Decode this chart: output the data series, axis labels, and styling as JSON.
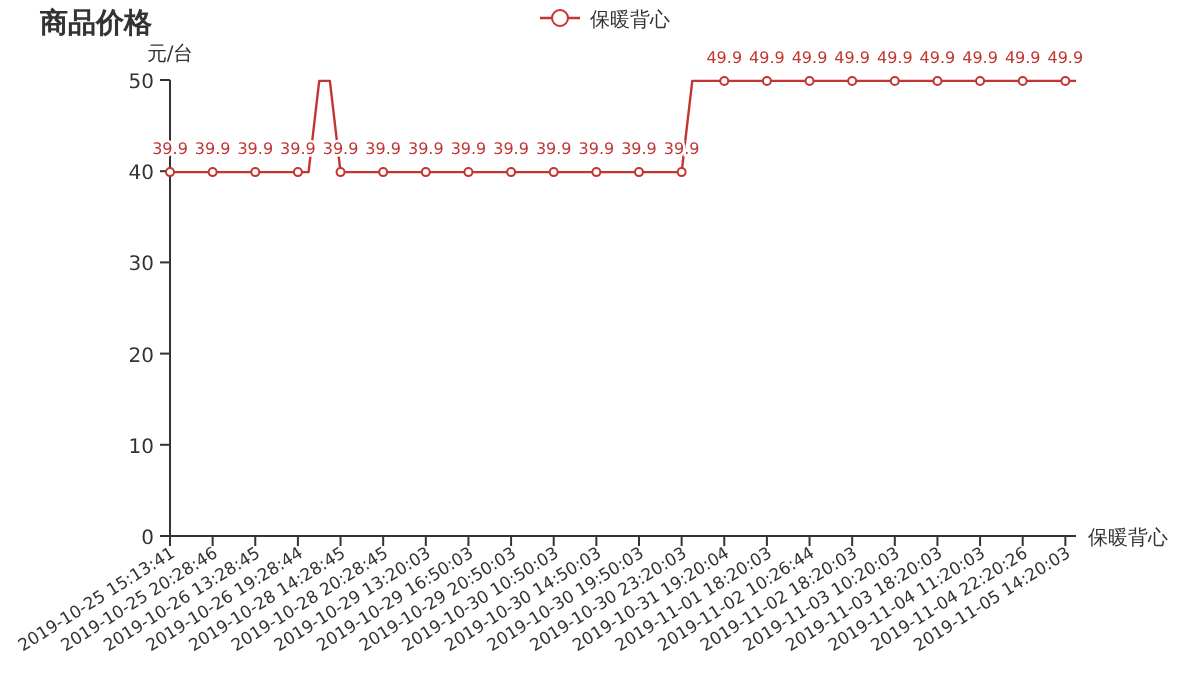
{
  "chart_data": {
    "type": "line",
    "title": "商品价格",
    "ylabel": "元/台",
    "xlabel": "保暖背心",
    "categories": [
      "2019-10-25 15:13:41",
      null,
      null,
      null,
      "2019-10-25 20:28:46",
      null,
      null,
      null,
      "2019-10-26 13:28:45",
      null,
      null,
      null,
      "2019-10-26 19:28:44",
      null,
      null,
      null,
      "2019-10-28 14:28:45",
      null,
      null,
      null,
      "2019-10-28 20:28:45",
      null,
      null,
      null,
      "2019-10-29 13:20:03",
      null,
      null,
      null,
      "2019-10-29 16:50:03",
      null,
      null,
      null,
      "2019-10-29 20:50:03",
      null,
      null,
      null,
      "2019-10-30 10:50:03",
      null,
      null,
      null,
      "2019-10-30 14:50:03",
      null,
      null,
      null,
      "2019-10-30 19:50:03",
      null,
      null,
      null,
      "2019-10-30 23:20:03",
      null,
      null,
      null,
      "2019-10-31 19:20:04",
      null,
      null,
      null,
      "2019-11-01 18:20:03",
      null,
      null,
      null,
      "2019-11-02 10:26:44",
      null,
      null,
      null,
      "2019-11-02 18:20:03",
      null,
      null,
      null,
      "2019-11-03 10:20:03",
      null,
      null,
      null,
      "2019-11-03 18:20:03",
      null,
      null,
      null,
      "2019-11-04 11:20:03",
      null,
      null,
      null,
      "2019-11-04 22:20:26",
      null,
      null,
      null,
      "2019-11-05 14:20:03",
      null
    ],
    "series": [
      {
        "name": "保暖背心",
        "color": "#c23531",
        "values": [
          39.9,
          39.9,
          39.9,
          39.9,
          39.9,
          39.9,
          39.9,
          39.9,
          39.9,
          39.9,
          39.9,
          39.9,
          39.9,
          39.9,
          49.9,
          49.9,
          39.9,
          39.9,
          39.9,
          39.9,
          39.9,
          39.9,
          39.9,
          39.9,
          39.9,
          39.9,
          39.9,
          39.9,
          39.9,
          39.9,
          39.9,
          39.9,
          39.9,
          39.9,
          39.9,
          39.9,
          39.9,
          39.9,
          39.9,
          39.9,
          39.9,
          39.9,
          39.9,
          39.9,
          39.9,
          39.9,
          39.9,
          39.9,
          39.9,
          49.9,
          49.9,
          49.9,
          49.9,
          49.9,
          49.9,
          49.9,
          49.9,
          49.9,
          49.9,
          49.9,
          49.9,
          49.9,
          49.9,
          49.9,
          49.9,
          49.9,
          49.9,
          49.9,
          49.9,
          49.9,
          49.9,
          49.9,
          49.9,
          49.9,
          49.9,
          49.9,
          49.9,
          49.9,
          49.9,
          49.9,
          49.9,
          49.9,
          49.9,
          49.9,
          49.9,
          49.9
        ],
        "value_labels": [
          "39.9",
          null,
          null,
          null,
          "39.9",
          null,
          null,
          null,
          "39.9",
          null,
          null,
          null,
          "39.9",
          null,
          null,
          null,
          "39.9",
          null,
          null,
          null,
          "39.9",
          null,
          null,
          null,
          "39.9",
          null,
          null,
          null,
          "39.9",
          null,
          null,
          null,
          "39.9",
          null,
          null,
          null,
          "39.9",
          null,
          null,
          null,
          "39.9",
          null,
          null,
          null,
          "39.9",
          null,
          null,
          null,
          "39.9",
          null,
          null,
          null,
          "49.9",
          null,
          null,
          null,
          "49.9",
          null,
          null,
          null,
          "49.9",
          null,
          null,
          null,
          "49.9",
          null,
          null,
          null,
          "49.9",
          null,
          null,
          null,
          "49.9",
          null,
          null,
          null,
          "49.9",
          null,
          null,
          null,
          "49.9",
          null,
          null,
          null,
          "49.9",
          null
        ]
      }
    ],
    "ylim": [
      0,
      50
    ],
    "yticks": [
      0,
      10,
      20,
      30,
      40,
      50
    ],
    "legend": "top",
    "line_style": "solid",
    "grid": false
  }
}
